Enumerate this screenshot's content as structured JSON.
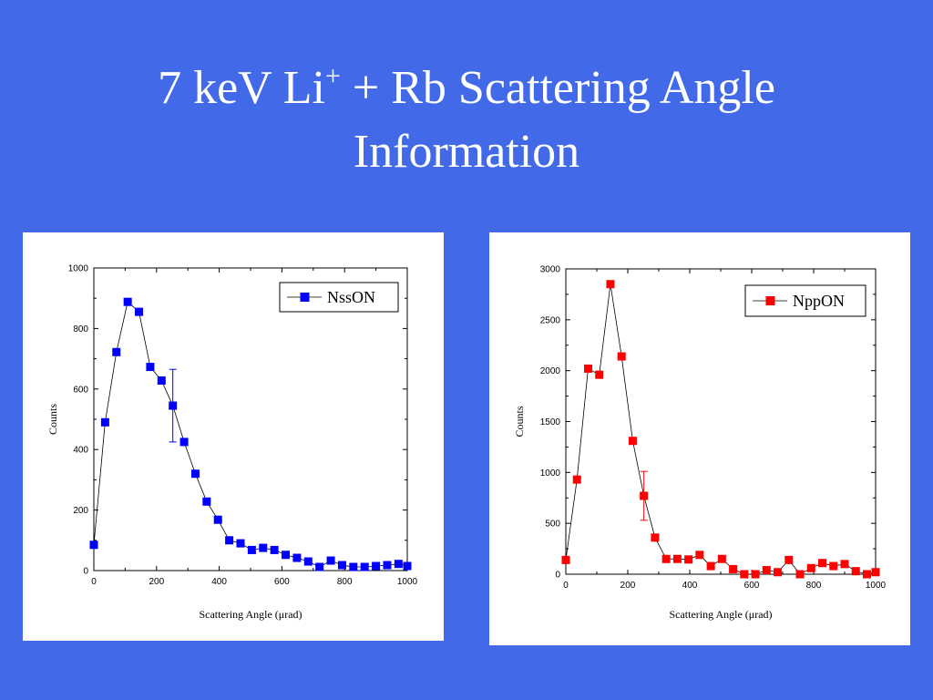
{
  "slide": {
    "title_line1_pre": "7 keV Li",
    "title_sup": "+",
    "title_line1_post": " + Rb Scattering Angle",
    "title_line2": "Information"
  },
  "colors": {
    "background": "#4169E8",
    "series_left": "#0000FF",
    "series_right": "#FF0000"
  },
  "chart_data": [
    {
      "type": "line",
      "xlabel": "Scattering Angle (μrad)",
      "ylabel": "Counts",
      "xlim": [
        0,
        1000
      ],
      "ylim": [
        0,
        1000
      ],
      "xticks": [
        0,
        200,
        400,
        600,
        800,
        1000
      ],
      "yticks": [
        0,
        200,
        400,
        600,
        800,
        1000
      ],
      "legend_position": "top-right",
      "grid": false,
      "series": [
        {
          "name": "NssON",
          "color": "#0000FF",
          "marker": "square",
          "x": [
            0,
            36,
            72,
            108,
            144,
            180,
            216,
            252,
            288,
            324,
            360,
            396,
            432,
            468,
            504,
            540,
            576,
            612,
            648,
            684,
            720,
            756,
            792,
            828,
            864,
            900,
            936,
            972,
            1000
          ],
          "y": [
            85,
            490,
            722,
            888,
            855,
            673,
            628,
            545,
            425,
            320,
            228,
            168,
            100,
            90,
            68,
            75,
            68,
            52,
            42,
            30,
            12,
            33,
            18,
            12,
            12,
            15,
            18,
            22,
            15
          ]
        }
      ],
      "error_bars": [
        {
          "x": 252,
          "y": 545,
          "low": 425,
          "high": 665
        }
      ]
    },
    {
      "type": "line",
      "xlabel": "Scattering Angle (μrad)",
      "ylabel": "Counts",
      "xlim": [
        0,
        1000
      ],
      "ylim": [
        0,
        3000
      ],
      "xticks": [
        0,
        200,
        400,
        600,
        800,
        1000
      ],
      "yticks": [
        0,
        500,
        1000,
        1500,
        2000,
        2500,
        3000
      ],
      "legend_position": "top-right",
      "grid": false,
      "series": [
        {
          "name": "NppON",
          "color": "#FF0000",
          "marker": "square",
          "x": [
            0,
            36,
            72,
            108,
            144,
            180,
            216,
            252,
            288,
            324,
            360,
            396,
            432,
            468,
            504,
            540,
            576,
            612,
            648,
            684,
            720,
            756,
            792,
            828,
            864,
            900,
            936,
            972,
            1000
          ],
          "y": [
            140,
            930,
            2020,
            1960,
            2850,
            2140,
            1310,
            770,
            360,
            150,
            150,
            145,
            190,
            80,
            150,
            50,
            0,
            0,
            40,
            20,
            140,
            0,
            60,
            110,
            80,
            100,
            30,
            0,
            20
          ]
        }
      ],
      "error_bars": [
        {
          "x": 252,
          "y": 770,
          "low": 530,
          "high": 1010
        }
      ]
    }
  ]
}
